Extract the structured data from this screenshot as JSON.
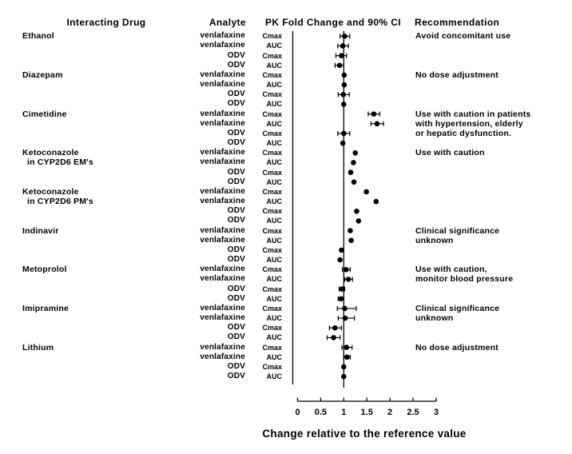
{
  "headers": {
    "interacting_drug": "Interacting Drug",
    "analyte": "Analyte",
    "pk": "PK  Fold Change and 90%  CI",
    "recommendation": "Recommendation"
  },
  "chart_data": {
    "type": "scatter",
    "variant": "forest-plot",
    "xlabel": "Change relative to the reference value",
    "xlim": [
      0,
      3
    ],
    "x_ticks": [
      0,
      0.5,
      1,
      1.5,
      2,
      2.5,
      3
    ],
    "reference_line_x": 1,
    "grid": false,
    "marker_color": "#000000",
    "groups": [
      {
        "drug": [
          "Ethanol"
        ],
        "recommendation": [
          "Avoid concomitant use"
        ],
        "rows": [
          {
            "analyte": "venlafaxine",
            "measure": "Cmax",
            "value": 1.02,
            "ci": [
              0.92,
              1.13
            ]
          },
          {
            "analyte": "venlafaxine",
            "measure": "AUC",
            "value": 0.98,
            "ci": [
              0.87,
              1.1
            ]
          },
          {
            "analyte": "ODV",
            "measure": "Cmax",
            "value": 0.95,
            "ci": [
              0.83,
              1.06
            ]
          },
          {
            "analyte": "ODV",
            "measure": "AUC",
            "value": 0.91,
            "ci": [
              0.81,
              1.0
            ]
          }
        ]
      },
      {
        "drug": [
          "Diazepam"
        ],
        "recommendation": [
          "No dose adjustment"
        ],
        "rows": [
          {
            "analyte": "venlafaxine",
            "measure": "Cmax",
            "value": 1.01,
            "ci": null
          },
          {
            "analyte": "venlafaxine",
            "measure": "AUC",
            "value": 1.01,
            "ci": null
          },
          {
            "analyte": "ODV",
            "measure": "Cmax",
            "value": 0.99,
            "ci": [
              0.88,
              1.12
            ]
          },
          {
            "analyte": "ODV",
            "measure": "AUC",
            "value": 1.0,
            "ci": null
          }
        ]
      },
      {
        "drug": [
          "Cimetidine"
        ],
        "recommendation": [
          "Use with caution in patients",
          "with hypertension, elderly",
          "or hepatic dysfunction."
        ],
        "rows": [
          {
            "analyte": "venlafaxine",
            "measure": "Cmax",
            "value": 1.65,
            "ci": [
              1.53,
              1.78
            ]
          },
          {
            "analyte": "venlafaxine",
            "measure": "AUC",
            "value": 1.72,
            "ci": [
              1.59,
              1.86
            ]
          },
          {
            "analyte": "ODV",
            "measure": "Cmax",
            "value": 1.0,
            "ci": [
              0.87,
              1.13
            ]
          },
          {
            "analyte": "ODV",
            "measure": "AUC",
            "value": 0.98,
            "ci": null
          }
        ]
      },
      {
        "drug": [
          "Ketoconazole",
          "in CYP2D6 EM's"
        ],
        "recommendation": [
          "Use with caution"
        ],
        "rows": [
          {
            "analyte": "venlafaxine",
            "measure": "Cmax",
            "value": 1.25,
            "ci": null
          },
          {
            "analyte": "venlafaxine",
            "measure": "AUC",
            "value": 1.21,
            "ci": null
          },
          {
            "analyte": "ODV",
            "measure": "Cmax",
            "value": 1.15,
            "ci": null
          },
          {
            "analyte": "ODV",
            "measure": "AUC",
            "value": 1.22,
            "ci": null
          }
        ]
      },
      {
        "drug": [
          "Ketoconazole",
          "in CYP2D6 PM's"
        ],
        "recommendation": [],
        "rows": [
          {
            "analyte": "venlafaxine",
            "measure": "Cmax",
            "value": 1.49,
            "ci": null
          },
          {
            "analyte": "venlafaxine",
            "measure": "AUC",
            "value": 1.7,
            "ci": null
          },
          {
            "analyte": "ODV",
            "measure": "Cmax",
            "value": 1.28,
            "ci": null
          },
          {
            "analyte": "ODV",
            "measure": "AUC",
            "value": 1.32,
            "ci": null
          }
        ]
      },
      {
        "drug": [
          "Indinavir"
        ],
        "recommendation": [
          "Clinical significance",
          "unknown"
        ],
        "rows": [
          {
            "analyte": "venlafaxine",
            "measure": "Cmax",
            "value": 1.14,
            "ci": null
          },
          {
            "analyte": "venlafaxine",
            "measure": "AUC",
            "value": 1.16,
            "ci": null
          },
          {
            "analyte": "ODV",
            "measure": "Cmax",
            "value": 0.95,
            "ci": null
          },
          {
            "analyte": "ODV",
            "measure": "AUC",
            "value": 0.92,
            "ci": null
          }
        ]
      },
      {
        "drug": [
          "Metoprolol"
        ],
        "recommendation": [
          "Use with caution,",
          "monitor blood pressure"
        ],
        "rows": [
          {
            "analyte": "venlafaxine",
            "measure": "Cmax",
            "value": 1.05,
            "ci": [
              0.97,
              1.14
            ]
          },
          {
            "analyte": "venlafaxine",
            "measure": "AUC",
            "value": 1.1,
            "ci": [
              1.02,
              1.19
            ]
          },
          {
            "analyte": "ODV",
            "measure": "Cmax",
            "value": 0.96,
            "ci": [
              0.9,
              1.02
            ]
          },
          {
            "analyte": "ODV",
            "measure": "AUC",
            "value": 0.94,
            "ci": [
              0.88,
              1.0
            ]
          }
        ]
      },
      {
        "drug": [
          "Imipramine"
        ],
        "recommendation": [
          "Clinical significance",
          "unknown"
        ],
        "rows": [
          {
            "analyte": "venlafaxine",
            "measure": "Cmax",
            "value": 1.02,
            "ci": [
              0.86,
              1.27
            ]
          },
          {
            "analyte": "venlafaxine",
            "measure": "AUC",
            "value": 1.03,
            "ci": [
              0.88,
              1.23
            ]
          },
          {
            "analyte": "ODV",
            "measure": "Cmax",
            "value": 0.81,
            "ci": [
              0.69,
              0.95
            ]
          },
          {
            "analyte": "ODV",
            "measure": "AUC",
            "value": 0.78,
            "ci": [
              0.64,
              0.92
            ]
          }
        ]
      },
      {
        "drug": [
          "Lithium"
        ],
        "recommendation": [
          "No dose adjustment"
        ],
        "rows": [
          {
            "analyte": "venlafaxine",
            "measure": "Cmax",
            "value": 1.06,
            "ci": [
              0.96,
              1.18
            ]
          },
          {
            "analyte": "venlafaxine",
            "measure": "AUC",
            "value": 1.07,
            "ci": [
              1.0,
              1.14
            ]
          },
          {
            "analyte": "ODV",
            "measure": "Cmax",
            "value": 1.0,
            "ci": null
          },
          {
            "analyte": "ODV",
            "measure": "AUC",
            "value": 1.0,
            "ci": null
          }
        ]
      }
    ]
  }
}
